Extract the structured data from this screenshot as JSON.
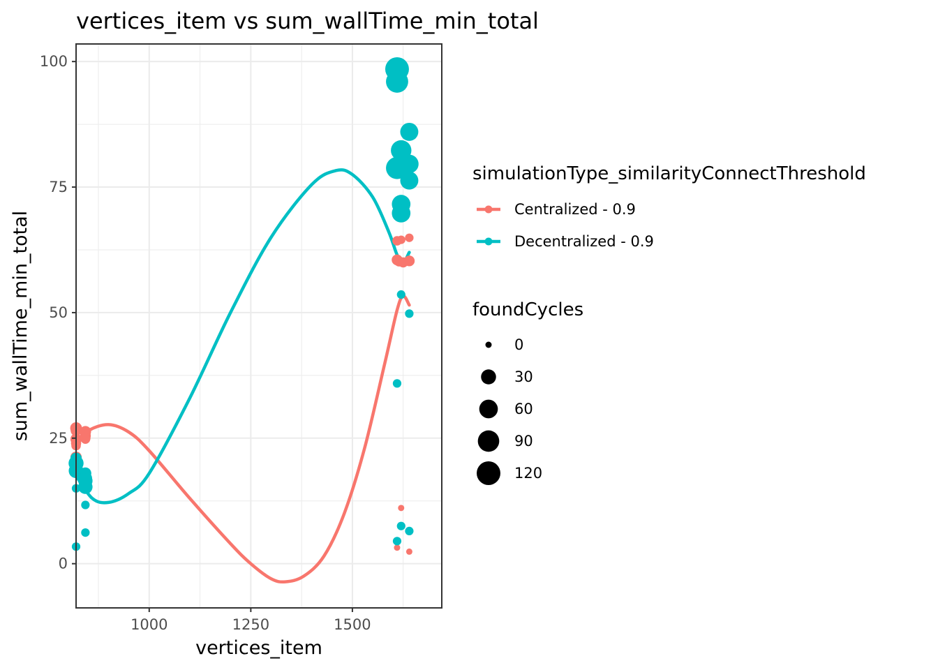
{
  "chart_data": {
    "type": "scatter",
    "title": "vertices_item  vs  sum_wallTime_min_total",
    "xlabel": "vertices_item",
    "ylabel": "sum_wallTime_min_total",
    "xlim": [
      820,
      1720
    ],
    "ylim": [
      -8.8,
      103.5
    ],
    "x_ticks": [
      1000,
      1250,
      1500
    ],
    "y_ticks": [
      0,
      25,
      50,
      75,
      100
    ],
    "x_tick_labels": [
      "1000",
      "1250",
      "1500"
    ],
    "y_tick_labels": [
      "0",
      "25",
      "50",
      "75",
      "100"
    ],
    "grid": true,
    "legend_position": "right",
    "color_legend": {
      "title": "simulationType_similarityConnectThreshold",
      "entries": [
        {
          "label": "Centralized - 0.9",
          "color": "#F8766D"
        },
        {
          "label": "Decentralized - 0.9",
          "color": "#00BFC4"
        }
      ]
    },
    "size_legend": {
      "title": "foundCycles",
      "entries": [
        {
          "label": "0",
          "value": 0
        },
        {
          "label": "30",
          "value": 30
        },
        {
          "label": "60",
          "value": 60
        },
        {
          "label": "90",
          "value": 90
        },
        {
          "label": "120",
          "value": 120
        }
      ]
    },
    "series": [
      {
        "name": "Centralized - 0.9",
        "color": "#F8766D",
        "points": [
          {
            "x": 820,
            "y": 27.0,
            "foundCycles": 12
          },
          {
            "x": 820,
            "y": 26.5,
            "foundCycles": 8
          },
          {
            "x": 820,
            "y": 24.8,
            "foundCycles": 10
          },
          {
            "x": 820,
            "y": 24.0,
            "foundCycles": 6
          },
          {
            "x": 820,
            "y": 23.5,
            "foundCycles": 4
          },
          {
            "x": 820,
            "y": 21.2,
            "foundCycles": 10
          },
          {
            "x": 843,
            "y": 26.3,
            "foundCycles": 10
          },
          {
            "x": 843,
            "y": 25.5,
            "foundCycles": 8
          },
          {
            "x": 843,
            "y": 25.0,
            "foundCycles": 6
          },
          {
            "x": 843,
            "y": 24.8,
            "foundCycles": 4
          },
          {
            "x": 1610,
            "y": 64.3,
            "foundCycles": 4
          },
          {
            "x": 1620,
            "y": 64.5,
            "foundCycles": 2
          },
          {
            "x": 1640,
            "y": 64.9,
            "foundCycles": 2
          },
          {
            "x": 1610,
            "y": 60.5,
            "foundCycles": 8
          },
          {
            "x": 1615,
            "y": 60.2,
            "foundCycles": 6
          },
          {
            "x": 1625,
            "y": 60.0,
            "foundCycles": 6
          },
          {
            "x": 1640,
            "y": 60.3,
            "foundCycles": 8
          },
          {
            "x": 1620,
            "y": 11.1,
            "foundCycles": 0
          },
          {
            "x": 1610,
            "y": 3.2,
            "foundCycles": 0
          },
          {
            "x": 1640,
            "y": 2.4,
            "foundCycles": 0
          }
        ],
        "trend": [
          {
            "x": 820,
            "y": 24.0
          },
          {
            "x": 850,
            "y": 26.5
          },
          {
            "x": 900,
            "y": 27.7
          },
          {
            "x": 950,
            "y": 26.2
          },
          {
            "x": 1000,
            "y": 22.5
          },
          {
            "x": 1100,
            "y": 13.0
          },
          {
            "x": 1200,
            "y": 4.0
          },
          {
            "x": 1250,
            "y": 0.0
          },
          {
            "x": 1300,
            "y": -3.0
          },
          {
            "x": 1335,
            "y": -3.6
          },
          {
            "x": 1380,
            "y": -2.5
          },
          {
            "x": 1430,
            "y": 1.5
          },
          {
            "x": 1480,
            "y": 10.0
          },
          {
            "x": 1530,
            "y": 23.0
          },
          {
            "x": 1580,
            "y": 40.0
          },
          {
            "x": 1610,
            "y": 50.5
          },
          {
            "x": 1625,
            "y": 53.3
          },
          {
            "x": 1640,
            "y": 51.5
          }
        ]
      },
      {
        "name": "Decentralized - 0.9",
        "color": "#00BFC4",
        "points": [
          {
            "x": 820,
            "y": 21.0,
            "foundCycles": 10
          },
          {
            "x": 820,
            "y": 20.0,
            "foundCycles": 30
          },
          {
            "x": 820,
            "y": 18.5,
            "foundCycles": 28
          },
          {
            "x": 820,
            "y": 15.0,
            "foundCycles": 2
          },
          {
            "x": 820,
            "y": 3.4,
            "foundCycles": 2
          },
          {
            "x": 843,
            "y": 18.0,
            "foundCycles": 12
          },
          {
            "x": 843,
            "y": 17.0,
            "foundCycles": 20
          },
          {
            "x": 843,
            "y": 16.5,
            "foundCycles": 25
          },
          {
            "x": 843,
            "y": 15.3,
            "foundCycles": 25
          },
          {
            "x": 843,
            "y": 11.7,
            "foundCycles": 2
          },
          {
            "x": 843,
            "y": 6.2,
            "foundCycles": 2
          },
          {
            "x": 1610,
            "y": 98.5,
            "foundCycles": 120
          },
          {
            "x": 1610,
            "y": 96.0,
            "foundCycles": 100
          },
          {
            "x": 1640,
            "y": 86.0,
            "foundCycles": 55
          },
          {
            "x": 1620,
            "y": 82.3,
            "foundCycles": 80
          },
          {
            "x": 1640,
            "y": 79.6,
            "foundCycles": 60
          },
          {
            "x": 1610,
            "y": 78.8,
            "foundCycles": 100
          },
          {
            "x": 1640,
            "y": 76.3,
            "foundCycles": 55
          },
          {
            "x": 1620,
            "y": 71.6,
            "foundCycles": 60
          },
          {
            "x": 1620,
            "y": 69.8,
            "foundCycles": 60
          },
          {
            "x": 1620,
            "y": 53.6,
            "foundCycles": 2
          },
          {
            "x": 1640,
            "y": 49.8,
            "foundCycles": 2
          },
          {
            "x": 1610,
            "y": 35.9,
            "foundCycles": 2
          },
          {
            "x": 1620,
            "y": 7.5,
            "foundCycles": 2
          },
          {
            "x": 1640,
            "y": 6.5,
            "foundCycles": 2
          },
          {
            "x": 1610,
            "y": 4.5,
            "foundCycles": 2
          }
        ],
        "trend": [
          {
            "x": 820,
            "y": 17.5
          },
          {
            "x": 860,
            "y": 13.0
          },
          {
            "x": 900,
            "y": 12.2
          },
          {
            "x": 950,
            "y": 14.0
          },
          {
            "x": 1000,
            "y": 18.0
          },
          {
            "x": 1100,
            "y": 33.0
          },
          {
            "x": 1200,
            "y": 50.0
          },
          {
            "x": 1300,
            "y": 65.0
          },
          {
            "x": 1400,
            "y": 75.5
          },
          {
            "x": 1460,
            "y": 78.3
          },
          {
            "x": 1500,
            "y": 77.5
          },
          {
            "x": 1550,
            "y": 73.0
          },
          {
            "x": 1590,
            "y": 66.0
          },
          {
            "x": 1610,
            "y": 61.5
          },
          {
            "x": 1625,
            "y": 60.0
          },
          {
            "x": 1640,
            "y": 62.0
          }
        ]
      }
    ]
  }
}
